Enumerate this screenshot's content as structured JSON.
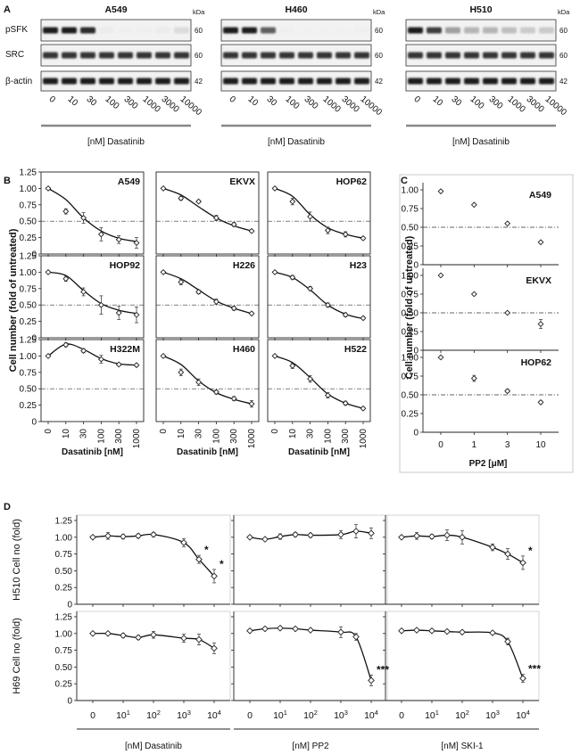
{
  "panel_labels": {
    "a": "A",
    "b": "B",
    "c": "C",
    "d": "D"
  },
  "blots": {
    "row_labels": [
      "pSFK",
      "SRC",
      "β-actin"
    ],
    "kda_label": "kDa",
    "kda_values": [
      "60",
      "60",
      "42"
    ],
    "doses": [
      "0",
      "10",
      "30",
      "100",
      "300",
      "1000",
      "3000",
      "10000"
    ],
    "xlabel": "[nM] Dasatinib",
    "cell_lines": [
      "A549",
      "H460",
      "H510"
    ],
    "band_intensity": [
      {
        "pSFK": [
          1,
          1,
          0.95,
          0.04,
          0.03,
          0.03,
          0.04,
          0.12
        ],
        "SRC": [
          0.9,
          0.9,
          0.9,
          0.9,
          0.9,
          0.9,
          0.9,
          0.9
        ],
        "actin": [
          1,
          1,
          1,
          1,
          1,
          1,
          1,
          1
        ]
      },
      {
        "pSFK": [
          1,
          1,
          0.7,
          0.03,
          0.02,
          0.02,
          0.02,
          0.03
        ],
        "SRC": [
          0.9,
          0.9,
          0.9,
          0.9,
          0.9,
          0.9,
          0.9,
          0.9
        ],
        "actin": [
          1,
          1,
          1,
          1,
          1,
          1,
          1,
          1
        ]
      },
      {
        "pSFK": [
          1,
          0.85,
          0.4,
          0.3,
          0.3,
          0.25,
          0.2,
          0.2
        ],
        "SRC": [
          0.9,
          0.9,
          0.9,
          0.9,
          0.9,
          0.9,
          0.9,
          0.9
        ],
        "actin": [
          1,
          1,
          1,
          1,
          1,
          1,
          1,
          1
        ]
      }
    ]
  },
  "panel_b": {
    "ylabel": "Cell number (fold of untreated)",
    "xlabel": "Dasatinib [nM]",
    "yticks": [
      "0",
      "0.25",
      "0.50",
      "0.75",
      "1.00",
      "1.25"
    ],
    "xticks": [
      "0",
      "10",
      "30",
      "100",
      "300",
      "1000"
    ],
    "threshold": 0.5
  },
  "panel_c": {
    "xlabel": "PP2 [μM]",
    "yticks": [
      "0",
      "0.25",
      "0.50",
      "0.75",
      "1.00"
    ],
    "xticks": [
      "0",
      "1",
      "3",
      "10"
    ],
    "threshold": 0.5
  },
  "panel_d": {
    "row_ylabels": [
      "H510 Cell no (fold)",
      "H69 Cell no (fold)"
    ],
    "yticks": [
      "0",
      "0.25",
      "0.50",
      "0.75",
      "1.00",
      "1.25"
    ],
    "xtick_base": [
      "0",
      "10",
      "10",
      "10",
      "10"
    ],
    "xtick_sup": [
      "",
      "1",
      "2",
      "3",
      "4"
    ],
    "xlabels": [
      "[nM] Dasatinib",
      "[nM] PP2",
      "[nM] SKI-1"
    ]
  },
  "chart_data": [
    {
      "type": "scatter",
      "panel": "B",
      "x": [
        "0",
        "10",
        "30",
        "100",
        "300",
        "1000"
      ],
      "threshold_line": 0.5,
      "ylim": [
        0,
        1.25
      ],
      "series": [
        {
          "name": "A549",
          "values": [
            1.0,
            0.65,
            0.55,
            0.3,
            0.22,
            0.17
          ],
          "err": [
            0,
            0.04,
            0.08,
            0.1,
            0.06,
            0.08
          ],
          "fit": [
            1.0,
            0.83,
            0.55,
            0.35,
            0.24,
            0.19
          ]
        },
        {
          "name": "EKVX",
          "values": [
            1.0,
            0.85,
            0.8,
            0.55,
            0.45,
            0.35
          ],
          "err": [
            0,
            0.03,
            0.02,
            0.04,
            0.03,
            0.02
          ],
          "fit": [
            1.0,
            0.9,
            0.72,
            0.55,
            0.43,
            0.35
          ]
        },
        {
          "name": "HOP62",
          "values": [
            1.0,
            0.8,
            0.57,
            0.36,
            0.3,
            0.24
          ],
          "err": [
            0,
            0.05,
            0.07,
            0.05,
            0.04,
            0.02
          ],
          "fit": [
            1.0,
            0.88,
            0.6,
            0.4,
            0.3,
            0.24
          ]
        },
        {
          "name": "HOP92",
          "values": [
            1.0,
            0.9,
            0.7,
            0.5,
            0.38,
            0.35
          ],
          "err": [
            0,
            0.04,
            0.06,
            0.14,
            0.1,
            0.12
          ],
          "fit": [
            1.0,
            0.95,
            0.72,
            0.52,
            0.42,
            0.37
          ]
        },
        {
          "name": "H226",
          "values": [
            1.0,
            0.85,
            0.7,
            0.55,
            0.45,
            0.37
          ],
          "err": [
            0,
            0.04,
            0.03,
            0.04,
            0.03,
            0.02
          ],
          "fit": [
            1.0,
            0.9,
            0.73,
            0.56,
            0.45,
            0.37
          ]
        },
        {
          "name": "H23",
          "values": [
            1.0,
            0.92,
            0.75,
            0.5,
            0.35,
            0.3
          ],
          "err": [
            0,
            0.03,
            0.03,
            0.03,
            0.03,
            0.02
          ],
          "fit": [
            1.0,
            0.92,
            0.73,
            0.5,
            0.36,
            0.29
          ]
        },
        {
          "name": "H322M",
          "values": [
            1.0,
            1.17,
            1.08,
            0.95,
            0.87,
            0.86
          ],
          "err": [
            0,
            0.03,
            0.03,
            0.06,
            0.02,
            0.02
          ],
          "fit": [
            1.0,
            1.18,
            1.1,
            0.96,
            0.88,
            0.86
          ]
        },
        {
          "name": "H460",
          "values": [
            1.0,
            0.75,
            0.6,
            0.45,
            0.35,
            0.27
          ],
          "err": [
            0,
            0.05,
            0.05,
            0.03,
            0.03,
            0.05
          ],
          "fit": [
            1.0,
            0.87,
            0.62,
            0.44,
            0.34,
            0.27
          ]
        },
        {
          "name": "H522",
          "values": [
            1.0,
            0.85,
            0.65,
            0.4,
            0.28,
            0.2
          ],
          "err": [
            0,
            0.04,
            0.05,
            0.04,
            0.03,
            0.02
          ],
          "fit": [
            1.0,
            0.9,
            0.67,
            0.42,
            0.28,
            0.2
          ]
        }
      ]
    },
    {
      "type": "scatter",
      "panel": "C",
      "x": [
        "0",
        "1",
        "3",
        "10"
      ],
      "threshold_line": 0.5,
      "ylim": [
        0,
        1.0
      ],
      "series": [
        {
          "name": "A549",
          "values": [
            0.98,
            0.8,
            0.55,
            0.3
          ],
          "err": [
            0,
            0,
            0,
            0
          ]
        },
        {
          "name": "EKVX",
          "values": [
            1.0,
            0.75,
            0.5,
            0.35
          ],
          "err": [
            0,
            0,
            0,
            0.06
          ]
        },
        {
          "name": "HOP62",
          "values": [
            1.0,
            0.72,
            0.55,
            0.4
          ],
          "err": [
            0,
            0.04,
            0.02,
            0.02
          ]
        }
      ]
    },
    {
      "type": "scatter",
      "panel": "D",
      "x_log_positions": [
        0,
        0.5,
        1,
        1.5,
        2,
        2.5,
        3,
        3.5,
        4
      ],
      "ylim": [
        0,
        1.25
      ],
      "series": [
        {
          "name": "H510 Dasatinib",
          "values": [
            1.0,
            1.02,
            1.01,
            1.02,
            1.04,
            0.92,
            0.67,
            0.42
          ],
          "err": [
            0,
            0.05,
            0.03,
            0.03,
            0.03,
            0.06,
            0.06,
            0.1
          ],
          "x": [
            0,
            0.5,
            1,
            1.5,
            2,
            3,
            3.5,
            4
          ],
          "stars": [
            "",
            "",
            "",
            "",
            "",
            "",
            "*",
            "*"
          ]
        },
        {
          "name": "H510 PP2",
          "values": [
            1.0,
            0.97,
            1.01,
            1.04,
            1.03,
            1.04,
            1.09,
            1.06
          ],
          "err": [
            0,
            0.02,
            0.04,
            0.03,
            0.03,
            0.06,
            0.1,
            0.08
          ],
          "x": [
            0,
            0.5,
            1,
            1.5,
            2,
            3,
            3.5,
            4
          ],
          "stars": [
            "",
            "",
            "",
            "",
            "",
            "",
            "",
            ""
          ]
        },
        {
          "name": "H510 SKI-1",
          "values": [
            1.0,
            1.02,
            1.01,
            1.03,
            1.0,
            0.85,
            0.75,
            0.62
          ],
          "err": [
            0,
            0.05,
            0.03,
            0.08,
            0.1,
            0.05,
            0.08,
            0.1
          ],
          "x": [
            0,
            0.5,
            1,
            1.5,
            2,
            3,
            3.5,
            4
          ],
          "stars": [
            "",
            "",
            "",
            "",
            "",
            "",
            "",
            "*"
          ]
        },
        {
          "name": "H69 Dasatinib",
          "values": [
            1.0,
            1.0,
            0.97,
            0.94,
            0.98,
            0.93,
            0.91,
            0.78
          ],
          "err": [
            0,
            0.02,
            0.03,
            0.03,
            0.05,
            0.06,
            0.08,
            0.08
          ],
          "x": [
            0,
            0.5,
            1,
            1.5,
            2,
            3,
            3.5,
            4
          ],
          "stars": [
            "",
            "",
            "",
            "",
            "",
            "",
            "",
            ""
          ]
        },
        {
          "name": "H69 PP2",
          "values": [
            1.04,
            1.07,
            1.08,
            1.07,
            1.05,
            1.02,
            0.95,
            0.3
          ],
          "err": [
            0,
            0.02,
            0.02,
            0.02,
            0.02,
            0.08,
            0.05,
            0.08
          ],
          "x": [
            0,
            0.5,
            1,
            1.5,
            2,
            3,
            3.5,
            4
          ],
          "stars": [
            "",
            "",
            "",
            "",
            "",
            "",
            "",
            "***"
          ]
        },
        {
          "name": "H69 SKI-1",
          "values": [
            1.04,
            1.05,
            1.04,
            1.03,
            1.02,
            1.01,
            0.88,
            0.33
          ],
          "err": [
            0,
            0.02,
            0.02,
            0.02,
            0.02,
            0.02,
            0.05,
            0.06
          ],
          "x": [
            0,
            0.5,
            1,
            1.5,
            2,
            3,
            3.5,
            4
          ],
          "stars": [
            "",
            "",
            "",
            "",
            "",
            "",
            "",
            "***"
          ]
        }
      ]
    }
  ]
}
